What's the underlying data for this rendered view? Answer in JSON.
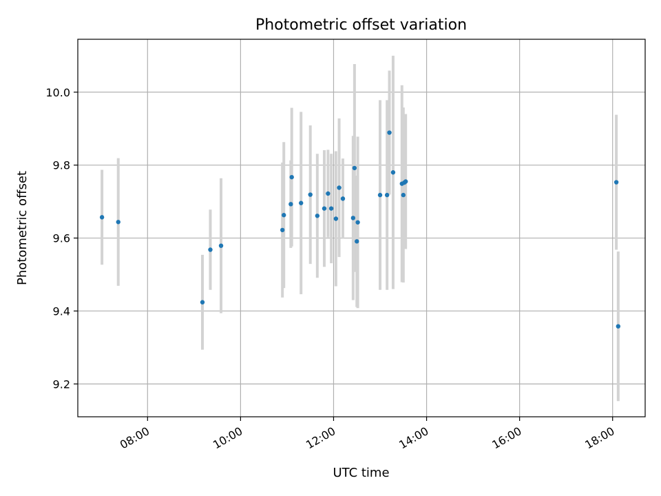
{
  "chart_data": {
    "type": "scatter",
    "title": "Photometric offset variation",
    "xlabel": "UTC time",
    "ylabel": "Photometric offset",
    "x_unit": "hours",
    "xlim": [
      6.5,
      18.7
    ],
    "ylim": [
      9.11,
      10.145
    ],
    "x_ticks": [
      {
        "value": 8,
        "label": "08:00"
      },
      {
        "value": 10,
        "label": "10:00"
      },
      {
        "value": 12,
        "label": "12:00"
      },
      {
        "value": 14,
        "label": "14:00"
      },
      {
        "value": 16,
        "label": "16:00"
      },
      {
        "value": 18,
        "label": "18:00"
      }
    ],
    "y_ticks": [
      {
        "value": 9.2,
        "label": "9.2"
      },
      {
        "value": 9.4,
        "label": "9.4"
      },
      {
        "value": 9.6,
        "label": "9.6"
      },
      {
        "value": 9.8,
        "label": "9.8"
      },
      {
        "value": 10.0,
        "label": "10.0"
      }
    ],
    "grid": true,
    "colors": {
      "point": "#1f77b4",
      "errorbar": "#d3d3d3",
      "grid": "#b0b0b0"
    },
    "points": [
      {
        "x": 7.02,
        "y": 9.657,
        "err": 0.13
      },
      {
        "x": 7.37,
        "y": 9.644,
        "err": 0.175
      },
      {
        "x": 9.18,
        "y": 9.424,
        "err": 0.13
      },
      {
        "x": 9.35,
        "y": 9.568,
        "err": 0.11
      },
      {
        "x": 9.58,
        "y": 9.579,
        "err": 0.185
      },
      {
        "x": 10.9,
        "y": 9.622,
        "err": 0.185
      },
      {
        "x": 10.93,
        "y": 9.663,
        "err": 0.2
      },
      {
        "x": 11.08,
        "y": 9.693,
        "err": 0.12
      },
      {
        "x": 11.1,
        "y": 9.767,
        "err": 0.19
      },
      {
        "x": 11.3,
        "y": 9.696,
        "err": 0.25
      },
      {
        "x": 11.5,
        "y": 9.719,
        "err": 0.19
      },
      {
        "x": 11.65,
        "y": 9.661,
        "err": 0.17
      },
      {
        "x": 11.8,
        "y": 9.681,
        "err": 0.16
      },
      {
        "x": 11.88,
        "y": 9.722,
        "err": 0.12
      },
      {
        "x": 11.95,
        "y": 9.681,
        "err": 0.15
      },
      {
        "x": 12.05,
        "y": 9.653,
        "err": 0.185
      },
      {
        "x": 12.12,
        "y": 9.738,
        "err": 0.19
      },
      {
        "x": 12.2,
        "y": 9.708,
        "err": 0.11
      },
      {
        "x": 12.42,
        "y": 9.655,
        "err": 0.225
      },
      {
        "x": 12.45,
        "y": 9.792,
        "err": 0.285
      },
      {
        "x": 12.5,
        "y": 9.591,
        "err": 0.18
      },
      {
        "x": 12.52,
        "y": 9.643,
        "err": 0.235
      },
      {
        "x": 13.0,
        "y": 9.718,
        "err": 0.26
      },
      {
        "x": 13.15,
        "y": 9.718,
        "err": 0.26
      },
      {
        "x": 13.2,
        "y": 9.889,
        "err": 0.17
      },
      {
        "x": 13.28,
        "y": 9.78,
        "err": 0.32
      },
      {
        "x": 13.47,
        "y": 9.749,
        "err": 0.27
      },
      {
        "x": 13.5,
        "y": 9.718,
        "err": 0.24
      },
      {
        "x": 13.52,
        "y": 9.752,
        "err": 0.17
      },
      {
        "x": 13.55,
        "y": 9.755,
        "err": 0.185
      },
      {
        "x": 18.08,
        "y": 9.753,
        "err": 0.185
      },
      {
        "x": 18.12,
        "y": 9.358,
        "err": 0.205
      }
    ]
  }
}
